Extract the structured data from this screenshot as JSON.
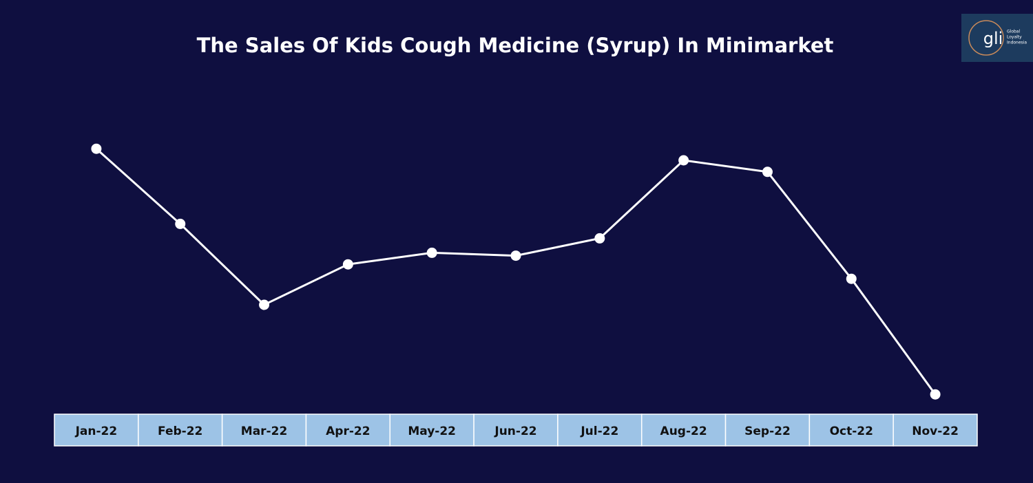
{
  "chart_data": {
    "type": "line",
    "title": "The Sales Of Kids Cough Medicine (Syrup) In Minimarket",
    "categories": [
      "Jan-22",
      "Feb-22",
      "Mar-22",
      "Apr-22",
      "May-22",
      "Jun-22",
      "Jul-22",
      "Aug-22",
      "Sep-22",
      "Oct-22",
      "Nov-22"
    ],
    "series": [
      {
        "color": "#ffffff",
        "values": [
          89,
          63,
          35,
          49,
          53,
          52,
          58,
          85,
          81,
          44,
          4
        ]
      }
    ],
    "ylim": [
      0,
      100
    ]
  },
  "logo": {
    "text": "gli",
    "tagline": [
      "Global",
      "Loyalty",
      "Indonesia"
    ]
  }
}
